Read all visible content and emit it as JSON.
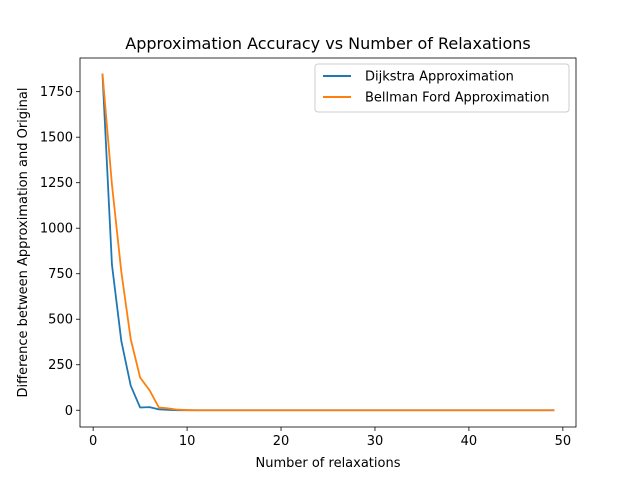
{
  "chart_data": {
    "type": "line",
    "title": "Approximation Accuracy vs Number of Relaxations",
    "xlabel": "Number of relaxations",
    "ylabel": "Difference between Approximation and Original",
    "xlim": [
      -1.4,
      51.4
    ],
    "ylim": [
      -92,
      1935
    ],
    "xticks": [
      0,
      10,
      20,
      30,
      40,
      50
    ],
    "xtick_labels": [
      "0",
      "10",
      "20",
      "30",
      "40",
      "50"
    ],
    "yticks": [
      0,
      250,
      500,
      750,
      1000,
      1250,
      1500,
      1750
    ],
    "ytick_labels": [
      "0",
      "250",
      "500",
      "750",
      "1000",
      "1250",
      "1500",
      "1750"
    ],
    "grid": false,
    "legend_position": "top-right",
    "series": [
      {
        "name": "Dijkstra Approximation",
        "color": "#1f77b4",
        "x": [
          1,
          2,
          3,
          4,
          5,
          6,
          7,
          8,
          9,
          10,
          11,
          12,
          13,
          14,
          15,
          16,
          17,
          18,
          19,
          20,
          21,
          22,
          23,
          24,
          25,
          26,
          27,
          28,
          29,
          30,
          31,
          32,
          33,
          34,
          35,
          36,
          37,
          38,
          39,
          40,
          41,
          42,
          43,
          44,
          45,
          46,
          47,
          48,
          49
        ],
        "y": [
          1840,
          800,
          380,
          135,
          15,
          17,
          5,
          2,
          0,
          0,
          0,
          0,
          0,
          0,
          0,
          0,
          0,
          0,
          0,
          0,
          0,
          0,
          0,
          0,
          0,
          0,
          0,
          0,
          0,
          0,
          0,
          0,
          0,
          0,
          0,
          0,
          0,
          0,
          0,
          0,
          0,
          0,
          0,
          0,
          0,
          0,
          0,
          0,
          0
        ]
      },
      {
        "name": "Bellman Ford Approximation",
        "color": "#ff7f0e",
        "x": [
          1,
          2,
          3,
          4,
          5,
          6,
          7,
          8,
          9,
          10,
          11,
          12,
          13,
          14,
          15,
          16,
          17,
          18,
          19,
          20,
          21,
          22,
          23,
          24,
          25,
          26,
          27,
          28,
          29,
          30,
          31,
          32,
          33,
          34,
          35,
          36,
          37,
          38,
          39,
          40,
          41,
          42,
          43,
          44,
          45,
          46,
          47,
          48,
          49
        ],
        "y": [
          1845,
          1240,
          760,
          390,
          180,
          110,
          15,
          10,
          3,
          1,
          0,
          0,
          0,
          0,
          0,
          0,
          0,
          0,
          0,
          0,
          0,
          0,
          0,
          0,
          0,
          0,
          0,
          0,
          0,
          0,
          0,
          0,
          0,
          0,
          0,
          0,
          0,
          0,
          0,
          0,
          0,
          0,
          0,
          0,
          0,
          0,
          0,
          0,
          0
        ]
      }
    ]
  }
}
